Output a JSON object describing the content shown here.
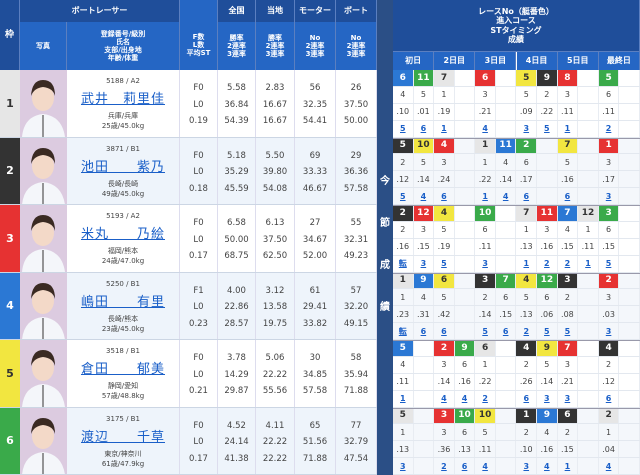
{
  "header": {
    "waku": "枠",
    "racer": "ボートレーサー",
    "photo": "写真",
    "info": [
      "登録番号/級別",
      "氏名",
      "支部/出身地",
      "年齢/体重"
    ],
    "fl": [
      "F数",
      "L数",
      "平均ST"
    ],
    "national": {
      "title": "全国",
      "sub": [
        "勝率",
        "2連率",
        "3連率"
      ]
    },
    "local": {
      "title": "当地",
      "sub": [
        "勝率",
        "2連率",
        "3連率"
      ]
    },
    "motor": {
      "title": "モーター",
      "sub": [
        "No",
        "2連率",
        "3連率"
      ]
    },
    "boat": {
      "title": "ボート",
      "sub": [
        "No",
        "2連率",
        "3連率"
      ]
    }
  },
  "right_header": [
    "レースNo（艇番色）",
    "進入コース",
    "STタイミング",
    "成績"
  ],
  "days": [
    "初日",
    "2日目",
    "3日目",
    "4日目",
    "5日目",
    "最終日"
  ],
  "strip_label": [
    "今",
    "節",
    "成",
    "績"
  ],
  "boat_colors": {
    "1": "#e6e6e6",
    "2": "#333333",
    "3": "#e63232",
    "4": "#2b78d4",
    "5": "#f2e640",
    "6": "#3aaa4a"
  },
  "racers": [
    {
      "waku": "1",
      "reg": "5188 / A2",
      "name": "武井　莉里佳",
      "branch": "兵庫/兵庫",
      "age": "25歳/45.0kg",
      "f": "F0",
      "l": "L0",
      "st": "0.19",
      "national": [
        "5.58",
        "36.84",
        "54.39"
      ],
      "local": [
        "2.83",
        "16.67",
        "16.67"
      ],
      "motor": [
        "56",
        "32.35",
        "54.41"
      ],
      "boat": [
        "26",
        "37.50",
        "50.00"
      ],
      "races": [
        "6",
        "11",
        "7",
        "",
        "6",
        "",
        "5",
        "9",
        "8",
        "",
        "5",
        ""
      ],
      "race_colors": [
        "4",
        "6",
        "1",
        "",
        "3",
        "",
        "5",
        "2",
        "3",
        "",
        "6",
        ""
      ],
      "courses": [
        "4",
        "5",
        "1",
        "",
        "3",
        "",
        "5",
        "2",
        "3",
        "",
        "6",
        ""
      ],
      "sts": [
        ".10",
        ".01",
        ".19",
        "",
        ".21",
        "",
        ".09",
        ".22",
        ".11",
        "",
        ".11",
        ""
      ],
      "results": [
        "5",
        "6",
        "1",
        "",
        "4",
        "",
        "3",
        "5",
        "1",
        "",
        "2",
        ""
      ]
    },
    {
      "waku": "2",
      "reg": "3871 / B1",
      "name": "池田　　紫乃",
      "branch": "長崎/長崎",
      "age": "49歳/45.0kg",
      "f": "F0",
      "l": "L0",
      "st": "0.18",
      "national": [
        "5.18",
        "35.29",
        "45.59"
      ],
      "local": [
        "5.50",
        "39.80",
        "54.08"
      ],
      "motor": [
        "69",
        "33.33",
        "46.67"
      ],
      "boat": [
        "29",
        "36.36",
        "57.58"
      ],
      "races": [
        "5",
        "10",
        "4",
        "",
        "1",
        "11",
        "2",
        "",
        "7",
        "",
        "1",
        ""
      ],
      "race_colors": [
        "2",
        "5",
        "3",
        "",
        "1",
        "4",
        "6",
        "",
        "5",
        "",
        "3",
        ""
      ],
      "courses": [
        "2",
        "5",
        "3",
        "",
        "1",
        "4",
        "6",
        "",
        "5",
        "",
        "3",
        ""
      ],
      "sts": [
        ".12",
        ".14",
        ".24",
        "",
        ".22",
        ".14",
        ".17",
        "",
        ".16",
        "",
        ".17",
        ""
      ],
      "results": [
        "5",
        "4",
        "6",
        "",
        "1",
        "4",
        "6",
        "",
        "6",
        "",
        "3",
        ""
      ]
    },
    {
      "waku": "3",
      "reg": "5193 / A2",
      "name": "米丸　　乃絵",
      "branch": "福岡/熊本",
      "age": "24歳/47.0kg",
      "f": "F0",
      "l": "L0",
      "st": "0.17",
      "national": [
        "6.58",
        "50.00",
        "68.75"
      ],
      "local": [
        "6.13",
        "37.50",
        "62.50"
      ],
      "motor": [
        "27",
        "34.67",
        "52.00"
      ],
      "boat": [
        "55",
        "32.31",
        "49.23"
      ],
      "races": [
        "2",
        "12",
        "4",
        "",
        "10",
        "",
        "7",
        "11",
        "7",
        "12",
        "3",
        ""
      ],
      "race_colors": [
        "2",
        "3",
        "5",
        "",
        "6",
        "",
        "1",
        "3",
        "4",
        "1",
        "6",
        ""
      ],
      "courses": [
        "2",
        "3",
        "5",
        "",
        "6",
        "",
        "1",
        "3",
        "4",
        "1",
        "6",
        ""
      ],
      "sts": [
        ".16",
        ".15",
        ".19",
        "",
        ".11",
        "",
        ".13",
        ".16",
        ".15",
        ".11",
        ".15",
        ""
      ],
      "results": [
        "転",
        "3",
        "5",
        "",
        "3",
        "",
        "1",
        "2",
        "2",
        "1",
        "5",
        ""
      ]
    },
    {
      "waku": "4",
      "reg": "5250 / B1",
      "name": "嶋田　　有里",
      "branch": "長崎/熊本",
      "age": "23歳/45.0kg",
      "f": "F1",
      "l": "L0",
      "st": "0.23",
      "national": [
        "4.00",
        "22.86",
        "28.57"
      ],
      "local": [
        "3.12",
        "13.58",
        "19.75"
      ],
      "motor": [
        "61",
        "29.41",
        "33.82"
      ],
      "boat": [
        "57",
        "32.20",
        "49.15"
      ],
      "races": [
        "1",
        "9",
        "6",
        "",
        "3",
        "7",
        "4",
        "12",
        "3",
        "",
        "2",
        ""
      ],
      "race_colors": [
        "1",
        "4",
        "5",
        "",
        "2",
        "6",
        "5",
        "6",
        "2",
        "",
        "3",
        ""
      ],
      "courses": [
        "1",
        "4",
        "5",
        "",
        "2",
        "6",
        "5",
        "6",
        "2",
        "",
        "3",
        ""
      ],
      "sts": [
        ".23",
        ".31",
        ".42",
        "",
        ".14",
        ".15",
        ".13",
        ".06",
        ".08",
        "",
        ".03",
        ""
      ],
      "results": [
        "転",
        "6",
        "6",
        "",
        "5",
        "6",
        "2",
        "5",
        "5",
        "",
        "3",
        ""
      ]
    },
    {
      "waku": "5",
      "reg": "3518 / B1",
      "name": "倉田　　郁美",
      "branch": "静岡/愛知",
      "age": "57歳/48.8kg",
      "f": "F0",
      "l": "L0",
      "st": "0.21",
      "national": [
        "3.78",
        "14.29",
        "29.87"
      ],
      "local": [
        "5.06",
        "22.22",
        "55.56"
      ],
      "motor": [
        "30",
        "34.85",
        "57.58"
      ],
      "boat": [
        "58",
        "35.94",
        "71.88"
      ],
      "races": [
        "5",
        "",
        "2",
        "9",
        "6",
        "",
        "4",
        "9",
        "7",
        "",
        "4",
        ""
      ],
      "race_colors": [
        "4",
        "",
        "3",
        "6",
        "1",
        "",
        "2",
        "5",
        "3",
        "",
        "2",
        ""
      ],
      "courses": [
        "4",
        "",
        "3",
        "6",
        "1",
        "",
        "2",
        "5",
        "3",
        "",
        "2",
        ""
      ],
      "sts": [
        ".11",
        "",
        ".14",
        ".16",
        ".22",
        "",
        ".26",
        ".14",
        ".21",
        "",
        ".12",
        ""
      ],
      "results": [
        "1",
        "",
        "4",
        "4",
        "2",
        "",
        "6",
        "3",
        "3",
        "",
        "6",
        ""
      ]
    },
    {
      "waku": "6",
      "reg": "3175 / B1",
      "name": "渡辺　　千草",
      "branch": "東京/神奈川",
      "age": "61歳/47.9kg",
      "f": "F0",
      "l": "L0",
      "st": "0.17",
      "national": [
        "4.52",
        "24.14",
        "41.38"
      ],
      "local": [
        "4.11",
        "22.22",
        "22.22"
      ],
      "motor": [
        "65",
        "51.56",
        "71.88"
      ],
      "boat": [
        "77",
        "32.79",
        "47.54"
      ],
      "races": [
        "5",
        "",
        "3",
        "10",
        "10",
        "",
        "1",
        "9",
        "6",
        "",
        "2",
        ""
      ],
      "race_colors": [
        "1",
        "",
        "3",
        "6",
        "5",
        "",
        "2",
        "4",
        "2",
        "",
        "1",
        ""
      ],
      "courses": [
        "1",
        "",
        "3",
        "6",
        "5",
        "",
        "2",
        "4",
        "2",
        "",
        "1",
        ""
      ],
      "sts": [
        ".13",
        "",
        ".36",
        ".13",
        ".11",
        "",
        ".10",
        ".16",
        ".15",
        "",
        ".04",
        ""
      ],
      "results": [
        "3",
        "",
        "2",
        "6",
        "4",
        "",
        "3",
        "4",
        "1",
        "",
        "4",
        ""
      ]
    }
  ]
}
